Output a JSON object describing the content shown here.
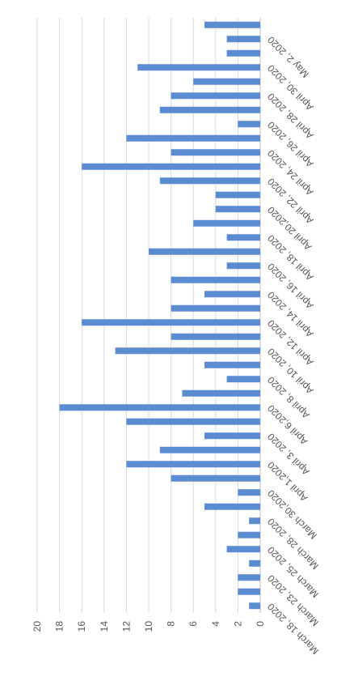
{
  "chart_data": {
    "type": "bar",
    "categories": [
      "March 18, 2020",
      null,
      "March 23, 2020",
      null,
      "March 25, 2020",
      null,
      "March 28, 2020",
      null,
      "March 30,2020",
      null,
      "April 1,2020",
      null,
      "April 3, 2020",
      null,
      "April 6,2020",
      null,
      "April 8, 2020",
      null,
      "April 10, 2020",
      null,
      "April 12, 2020",
      null,
      "April 14, 2020",
      null,
      "April 16, 2020",
      null,
      "April 18, 2020",
      null,
      "April 20,2020",
      null,
      "April 22, 2020",
      null,
      "April 24, 2020",
      null,
      "April 26, 2020",
      null,
      "April 28, 2020",
      null,
      "April 30, 2020",
      null,
      "May 2, 2020",
      null
    ],
    "values": [
      1,
      2,
      2,
      1,
      3,
      2,
      1,
      5,
      2,
      8,
      12,
      9,
      5,
      12,
      18,
      7,
      3,
      5,
      13,
      8,
      16,
      8,
      5,
      8,
      3,
      10,
      3,
      6,
      4,
      4,
      9,
      16,
      8,
      12,
      2,
      9,
      8,
      6,
      11,
      3,
      3,
      5
    ],
    "color": "#5b8bd0",
    "ylim": [
      0,
      20
    ],
    "yticks": [
      0,
      2,
      4,
      6,
      8,
      10,
      12,
      14,
      16,
      18,
      20
    ],
    "grid": true
  }
}
